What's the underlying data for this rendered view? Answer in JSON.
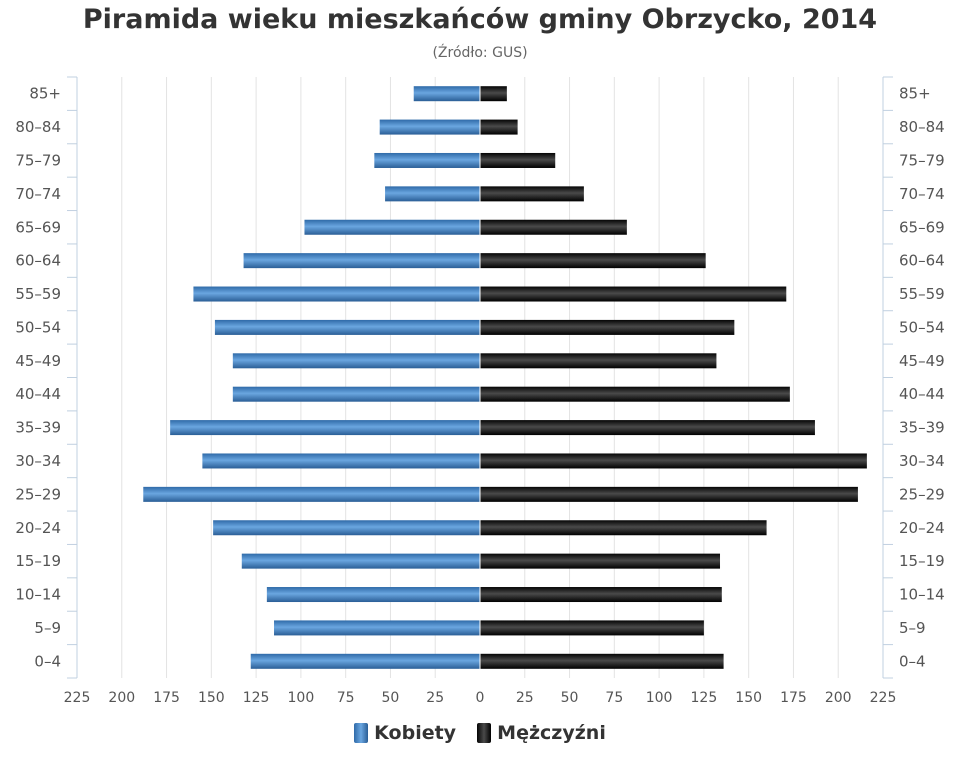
{
  "chart_data": {
    "type": "bar",
    "orientation": "horizontal-pyramid",
    "title": "Piramida wieku mieszkańców gminy Obrzycko, 2014",
    "subtitle": "(Źródło: GUS)",
    "categories": [
      "85+",
      "80-84",
      "75-79",
      "70-74",
      "65-69",
      "60-64",
      "55-59",
      "50-54",
      "45-49",
      "40-44",
      "35-39",
      "30-34",
      "25-29",
      "20-24",
      "15-19",
      "10-14",
      "5-9",
      "0-4"
    ],
    "category_labels": [
      "85+",
      "80–84",
      "75–79",
      "70–74",
      "65–69",
      "60–64",
      "55–59",
      "50–54",
      "45–49",
      "40–44",
      "35–39",
      "30–34",
      "25–29",
      "20–24",
      "15–19",
      "10–14",
      "5–9",
      "0–4"
    ],
    "series": [
      {
        "name": "Kobiety",
        "side": "left",
        "color": "#3e7cbf",
        "values": [
          37,
          56,
          59,
          53,
          98,
          132,
          160,
          148,
          138,
          138,
          173,
          155,
          188,
          149,
          133,
          119,
          115,
          128
        ]
      },
      {
        "name": "Mężczyźni",
        "side": "right",
        "color": "#111111",
        "values": [
          15,
          21,
          42,
          58,
          82,
          126,
          171,
          142,
          132,
          173,
          187,
          216,
          211,
          160,
          134,
          135,
          125,
          136
        ]
      }
    ],
    "xlim": [
      -225,
      225
    ],
    "x_ticks": [
      225,
      200,
      175,
      150,
      125,
      100,
      75,
      50,
      25,
      0,
      25,
      50,
      75,
      100,
      125,
      150,
      175,
      200,
      225
    ],
    "grid": true,
    "legend_position": "bottom-center"
  }
}
